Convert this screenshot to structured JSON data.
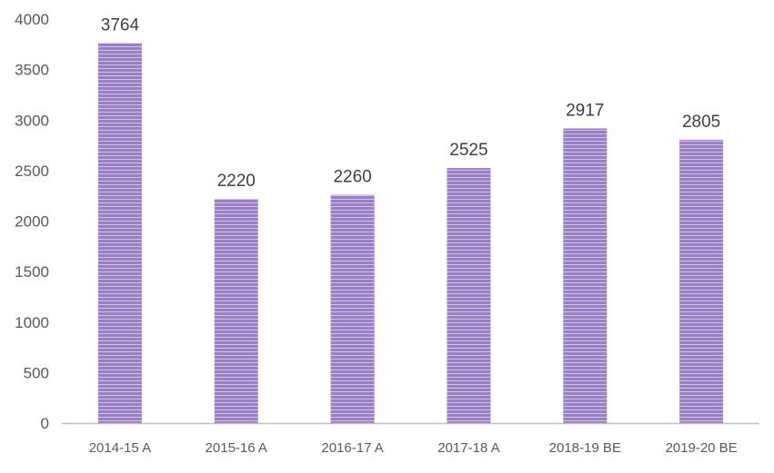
{
  "colors": {
    "bar_fill": "#9b7fc4",
    "bar_stripe": "#ffffff",
    "axis": "#bfbfbf",
    "tick_text": "#595959",
    "label_text": "#404040"
  },
  "chart_data": {
    "type": "bar",
    "categories": [
      "2014-15 A",
      "2015-16 A",
      "2016-17 A",
      "2017-18 A",
      "2018-19 BE",
      "2019-20 BE"
    ],
    "values": [
      3764,
      2220,
      2260,
      2525,
      2917,
      2805
    ],
    "ylim": [
      0,
      4000
    ],
    "yticks": [
      0,
      500,
      1000,
      1500,
      2000,
      2500,
      3000,
      3500,
      4000
    ],
    "grid": false,
    "legend": "none",
    "data_labels": true,
    "bar_pattern": "horizontal-stripes"
  }
}
